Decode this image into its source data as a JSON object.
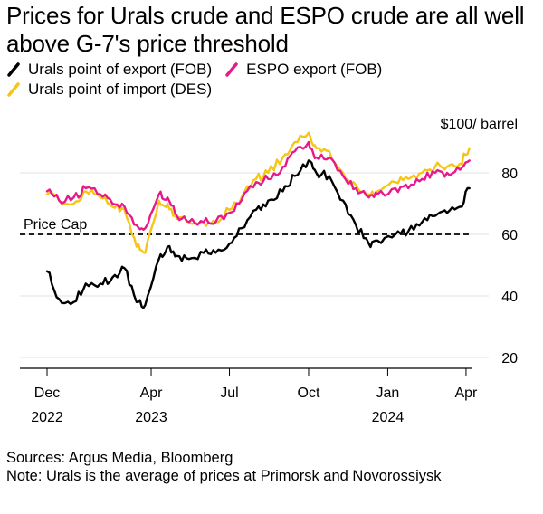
{
  "title": "Prices for Urals crude and ESPO crude are all well above G-7's price threshold",
  "legend": [
    {
      "label": "Urals point of export (FOB)",
      "color": "#000000",
      "icon": "slash-line-icon"
    },
    {
      "label": "ESPO export (FOB)",
      "color": "#e8198b",
      "icon": "slash-line-icon"
    },
    {
      "label": "Urals point of import (DES)",
      "color": "#f5c518",
      "icon": "slash-line-icon"
    }
  ],
  "footer": {
    "sources": "Sources: Argus Media, Bloomberg",
    "note": "Note: Urals is the average of prices at Primorsk and Novorossiysk"
  },
  "chart_data": {
    "type": "line",
    "unit_label": "$100/ barrel",
    "ylim": [
      20,
      95
    ],
    "yticks": [
      20,
      40,
      60,
      80
    ],
    "xlim": [
      "2022-12-01",
      "2024-05-10"
    ],
    "xticks": [
      {
        "date": "2022-12-01",
        "label": "Dec",
        "year": "2022"
      },
      {
        "date": "2023-04-01",
        "label": "Apr",
        "year": "2023"
      },
      {
        "date": "2023-07-01",
        "label": "Jul",
        "year": ""
      },
      {
        "date": "2023-10-01",
        "label": "Oct",
        "year": ""
      },
      {
        "date": "2024-01-01",
        "label": "Jan",
        "year": "2024"
      },
      {
        "date": "2024-04-01",
        "label": "Apr",
        "year": ""
      }
    ],
    "grid": true,
    "annotations": [
      {
        "label": "Price Cap",
        "y": 60,
        "style": "dashed"
      }
    ],
    "series": [
      {
        "name": "Urals point of export (FOB)",
        "color": "#000000",
        "points": [
          [
            "2022-12-01",
            48
          ],
          [
            "2022-12-15",
            39
          ],
          [
            "2023-01-01",
            38
          ],
          [
            "2023-01-15",
            44
          ],
          [
            "2023-02-01",
            44
          ],
          [
            "2023-02-15",
            46
          ],
          [
            "2023-03-01",
            49
          ],
          [
            "2023-03-15",
            38
          ],
          [
            "2023-03-25",
            37
          ],
          [
            "2023-04-10",
            52
          ],
          [
            "2023-04-20",
            56
          ],
          [
            "2023-05-01",
            53
          ],
          [
            "2023-05-15",
            52
          ],
          [
            "2023-06-01",
            54
          ],
          [
            "2023-06-15",
            54
          ],
          [
            "2023-07-01",
            57
          ],
          [
            "2023-07-15",
            62
          ],
          [
            "2023-08-01",
            68
          ],
          [
            "2023-08-15",
            71
          ],
          [
            "2023-09-01",
            74
          ],
          [
            "2023-09-15",
            79
          ],
          [
            "2023-10-01",
            84
          ],
          [
            "2023-10-10",
            80
          ],
          [
            "2023-10-25",
            79
          ],
          [
            "2023-11-10",
            71
          ],
          [
            "2023-11-25",
            63
          ],
          [
            "2023-12-10",
            57
          ],
          [
            "2023-12-20",
            58
          ],
          [
            "2024-01-10",
            60
          ],
          [
            "2024-01-25",
            61
          ],
          [
            "2024-02-10",
            64
          ],
          [
            "2024-02-25",
            66
          ],
          [
            "2024-03-10",
            67
          ],
          [
            "2024-03-25",
            69
          ],
          [
            "2024-04-05",
            75
          ]
        ]
      },
      {
        "name": "ESPO export (FOB)",
        "color": "#e8198b",
        "points": [
          [
            "2022-12-01",
            74
          ],
          [
            "2022-12-15",
            71
          ],
          [
            "2023-01-01",
            72
          ],
          [
            "2023-01-15",
            75
          ],
          [
            "2023-02-01",
            73
          ],
          [
            "2023-02-15",
            70
          ],
          [
            "2023-03-01",
            69
          ],
          [
            "2023-03-15",
            63
          ],
          [
            "2023-03-25",
            62
          ],
          [
            "2023-04-10",
            73
          ],
          [
            "2023-04-20",
            72
          ],
          [
            "2023-05-01",
            66
          ],
          [
            "2023-05-15",
            64
          ],
          [
            "2023-06-01",
            64
          ],
          [
            "2023-06-15",
            64
          ],
          [
            "2023-07-01",
            67
          ],
          [
            "2023-07-15",
            71
          ],
          [
            "2023-08-01",
            77
          ],
          [
            "2023-08-15",
            78
          ],
          [
            "2023-09-01",
            82
          ],
          [
            "2023-09-15",
            87
          ],
          [
            "2023-10-01",
            90
          ],
          [
            "2023-10-10",
            85
          ],
          [
            "2023-10-25",
            85
          ],
          [
            "2023-11-10",
            79
          ],
          [
            "2023-11-25",
            75
          ],
          [
            "2023-12-10",
            72
          ],
          [
            "2023-12-20",
            73
          ],
          [
            "2024-01-10",
            75
          ],
          [
            "2024-01-25",
            75
          ],
          [
            "2024-02-10",
            78
          ],
          [
            "2024-02-25",
            80
          ],
          [
            "2024-03-10",
            80
          ],
          [
            "2024-03-25",
            81
          ],
          [
            "2024-04-05",
            84
          ]
        ]
      },
      {
        "name": "Urals point of import (DES)",
        "color": "#f5c518",
        "points": [
          [
            "2022-12-01",
            73
          ],
          [
            "2022-12-15",
            71
          ],
          [
            "2023-01-01",
            70
          ],
          [
            "2023-01-15",
            74
          ],
          [
            "2023-02-01",
            72
          ],
          [
            "2023-02-15",
            69
          ],
          [
            "2023-03-01",
            68
          ],
          [
            "2023-03-15",
            56
          ],
          [
            "2023-03-25",
            54
          ],
          [
            "2023-04-10",
            71
          ],
          [
            "2023-04-20",
            70
          ],
          [
            "2023-05-01",
            65
          ],
          [
            "2023-05-15",
            64
          ],
          [
            "2023-06-01",
            64
          ],
          [
            "2023-06-15",
            64
          ],
          [
            "2023-07-01",
            68
          ],
          [
            "2023-07-15",
            72
          ],
          [
            "2023-08-01",
            78
          ],
          [
            "2023-08-15",
            80
          ],
          [
            "2023-09-01",
            85
          ],
          [
            "2023-09-15",
            90
          ],
          [
            "2023-10-01",
            93
          ],
          [
            "2023-10-10",
            88
          ],
          [
            "2023-10-25",
            87
          ],
          [
            "2023-11-10",
            80
          ],
          [
            "2023-11-25",
            76
          ],
          [
            "2023-12-10",
            73
          ],
          [
            "2023-12-20",
            74
          ],
          [
            "2024-01-10",
            77
          ],
          [
            "2024-01-25",
            78
          ],
          [
            "2024-02-10",
            80
          ],
          [
            "2024-02-25",
            82
          ],
          [
            "2024-03-10",
            82
          ],
          [
            "2024-03-25",
            83
          ],
          [
            "2024-04-05",
            88
          ]
        ]
      }
    ]
  }
}
